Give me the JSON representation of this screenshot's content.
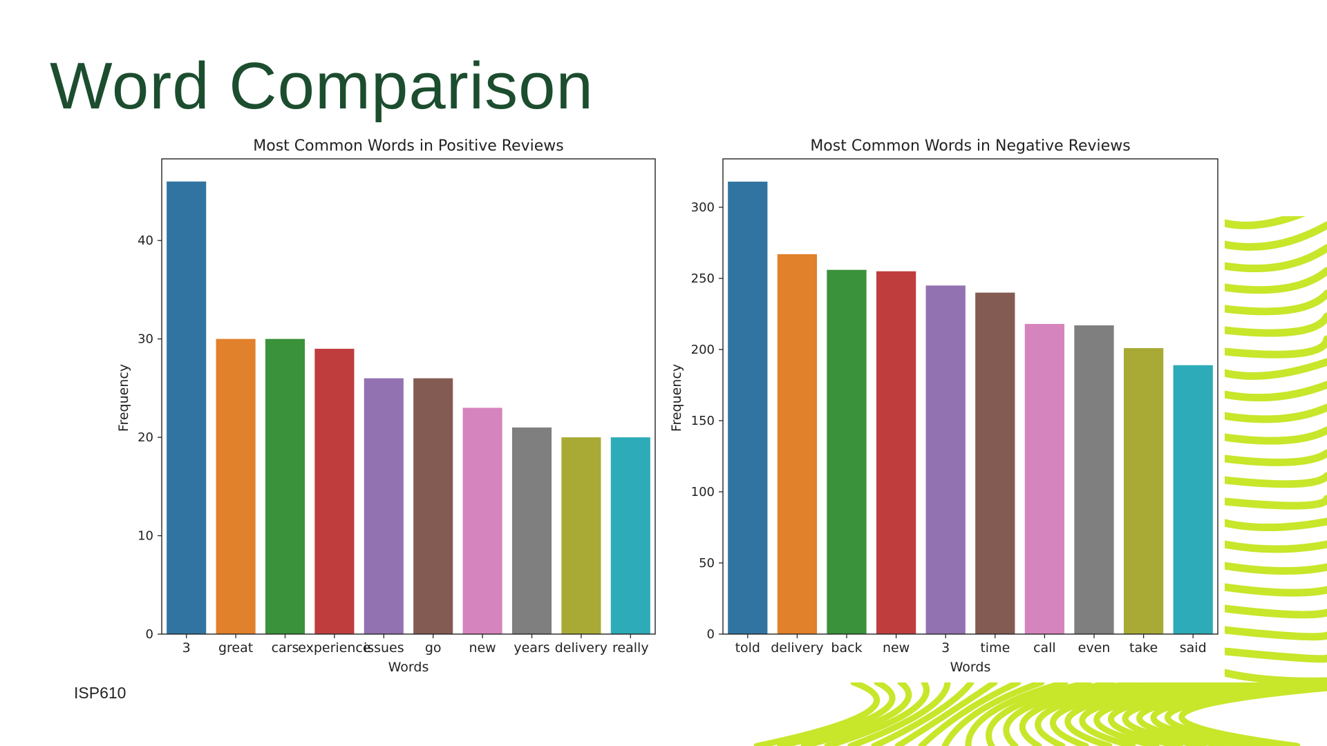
{
  "slide": {
    "title": "Word Comparison",
    "footer": "ISP610",
    "title_color": "#1b4d2e",
    "accent_color": "#c8e62a"
  },
  "chart_data": [
    {
      "type": "bar",
      "title": "Most Common Words in Positive Reviews",
      "xlabel": "Words",
      "ylabel": "Frequency",
      "categories": [
        "3",
        "great",
        "cars",
        "experience",
        "issues",
        "go",
        "new",
        "years",
        "delivery",
        "really"
      ],
      "values": [
        46,
        30,
        30,
        29,
        26,
        26,
        23,
        21,
        20,
        20
      ],
      "ylim": [
        0,
        48.3
      ],
      "yticks": [
        0,
        10,
        20,
        30,
        40
      ],
      "colors": [
        "#3274a1",
        "#e1812c",
        "#3a923a",
        "#c03d3e",
        "#9372b2",
        "#845b53",
        "#d684bd",
        "#7f7f7f",
        "#a9aa35",
        "#2eabb8"
      ],
      "grid": false,
      "legend": "none"
    },
    {
      "type": "bar",
      "title": "Most Common Words in Negative Reviews",
      "xlabel": "Words",
      "ylabel": "Frequency",
      "categories": [
        "told",
        "delivery",
        "back",
        "new",
        "3",
        "time",
        "call",
        "even",
        "take",
        "said"
      ],
      "values": [
        318,
        267,
        256,
        255,
        245,
        240,
        218,
        217,
        201,
        189
      ],
      "ylim": [
        0,
        334
      ],
      "yticks": [
        0,
        50,
        100,
        150,
        200,
        250,
        300
      ],
      "colors": [
        "#3274a1",
        "#e1812c",
        "#3a923a",
        "#c03d3e",
        "#9372b2",
        "#845b53",
        "#d684bd",
        "#7f7f7f",
        "#a9aa35",
        "#2eabb8"
      ],
      "grid": false,
      "legend": "none"
    }
  ]
}
